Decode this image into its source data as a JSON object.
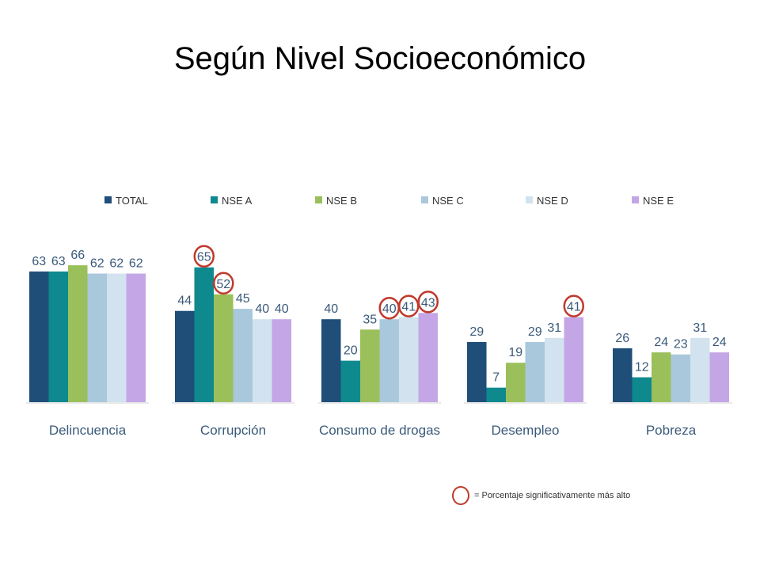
{
  "page": {
    "title": "Según Nivel Socioeconómico"
  },
  "legend_note": "= Porcentaje significativamente más alto",
  "chart_data": {
    "type": "bar",
    "title": "",
    "xlabel": "",
    "ylabel": "",
    "ylim": [
      0,
      70
    ],
    "grid": false,
    "legend_position": "top",
    "categories": [
      "Delincuencia",
      "Corrupción",
      "Consumo de drogas",
      "Desempleo",
      "Pobreza"
    ],
    "series": [
      {
        "name": "TOTAL",
        "color": "#1f4e79",
        "values": [
          63,
          44,
          40,
          29,
          26
        ]
      },
      {
        "name": "NSE A",
        "color": "#0e8a8f",
        "values": [
          63,
          65,
          20,
          7,
          12
        ]
      },
      {
        "name": "NSE B",
        "color": "#9bbf5a",
        "values": [
          66,
          52,
          35,
          19,
          24
        ]
      },
      {
        "name": "NSE C",
        "color": "#a9c8dc",
        "values": [
          62,
          45,
          40,
          29,
          23
        ]
      },
      {
        "name": "NSE D",
        "color": "#d2e3ef",
        "values": [
          62,
          40,
          41,
          31,
          31
        ]
      },
      {
        "name": "NSE E",
        "color": "#c4a6e6",
        "values": [
          62,
          40,
          43,
          41,
          24
        ]
      }
    ],
    "highlights": [
      {
        "category": "Corrupción",
        "series": "NSE A"
      },
      {
        "category": "Corrupción",
        "series": "NSE B"
      },
      {
        "category": "Consumo de drogas",
        "series": "NSE C"
      },
      {
        "category": "Consumo de drogas",
        "series": "NSE D"
      },
      {
        "category": "Consumo de drogas",
        "series": "NSE E"
      },
      {
        "category": "Desempleo",
        "series": "NSE E"
      }
    ],
    "label_color": "#3a5a7a",
    "highlight_color": "#c0392b"
  }
}
